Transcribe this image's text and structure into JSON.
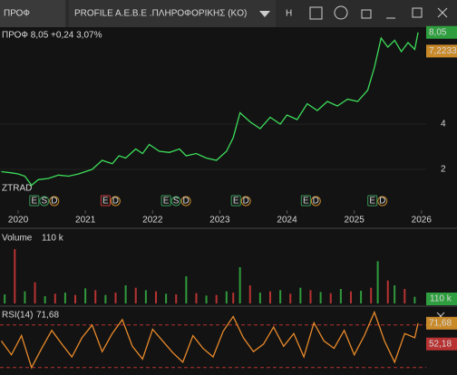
{
  "header": {
    "symbol": "ПРОФ",
    "instrument": "PROFILE A.E.B.E .ΠΛΗΡΟΦΟΡΙΚΗΣ (KO)",
    "button": "H"
  },
  "chart_data": [
    {
      "type": "line",
      "legend_text": "ПРОФ 8,05 +0,24 3,07%",
      "watermark": "ZTRAD",
      "color": "#3ddc5a",
      "x": [
        2019.75,
        2019.9,
        2020.0,
        2020.1,
        2020.2,
        2020.3,
        2020.45,
        2020.6,
        2020.75,
        2020.9,
        2021.0,
        2021.1,
        2021.25,
        2021.4,
        2021.5,
        2021.6,
        2021.75,
        2021.85,
        2021.95,
        2022.1,
        2022.25,
        2022.4,
        2022.5,
        2022.65,
        2022.8,
        2022.95,
        2023.1,
        2023.2,
        2023.3,
        2023.45,
        2023.6,
        2023.75,
        2023.9,
        2024.0,
        2024.15,
        2024.3,
        2024.45,
        2024.6,
        2024.75,
        2024.9,
        2025.05,
        2025.2,
        2025.3,
        2025.4,
        2025.5,
        2025.6,
        2025.7,
        2025.8,
        2025.9,
        2025.95
      ],
      "values": [
        1.9,
        1.85,
        1.8,
        1.7,
        1.3,
        1.55,
        1.6,
        1.75,
        1.7,
        1.8,
        1.9,
        2.0,
        2.4,
        2.25,
        2.6,
        2.5,
        2.9,
        2.7,
        3.1,
        2.8,
        2.75,
        2.9,
        2.6,
        2.7,
        2.5,
        2.4,
        2.8,
        3.4,
        4.5,
        4.1,
        3.8,
        4.3,
        4.0,
        4.4,
        4.2,
        4.9,
        4.6,
        5.0,
        4.8,
        5.1,
        5.0,
        5.5,
        6.5,
        7.8,
        7.4,
        7.7,
        7.2,
        7.6,
        7.3,
        8.05
      ],
      "xlim": [
        2019.73,
        2026.07
      ],
      "xticks": [
        2020,
        2021,
        2022,
        2023,
        2024,
        2025,
        2026
      ],
      "ylim": [
        0.2,
        8.28
      ],
      "yticks": [
        2,
        4
      ],
      "markers": [
        {
          "value": 8.05,
          "label": "8,05",
          "color": "#2e9e3e"
        },
        {
          "value": 7.2233,
          "label": "7,2233",
          "color": "#c98a2a"
        }
      ],
      "events": [
        {
          "x": 2020.24,
          "labels": [
            "E",
            "S",
            "D"
          ],
          "color": "#3a9a5a"
        },
        {
          "x": 2021.3,
          "labels": [
            "E",
            "D"
          ],
          "color": "#c83a3a"
        },
        {
          "x": 2022.2,
          "labels": [
            "E",
            "S",
            "D"
          ],
          "color": "#3a9a5a"
        },
        {
          "x": 2023.24,
          "labels": [
            "E",
            "D"
          ],
          "color": "#3a9a5a"
        },
        {
          "x": 2024.28,
          "labels": [
            "E",
            "D"
          ],
          "color": "#3a9a5a"
        },
        {
          "x": 2025.27,
          "labels": [
            "E",
            "D"
          ],
          "color": "#3a9a5a"
        }
      ]
    },
    {
      "type": "bar",
      "name": "Volume",
      "value_label": "110 k",
      "ylim": [
        0,
        1200
      ],
      "series": [
        {
          "color": "#2f9a3c",
          "x": [
            2019.8,
            2020.1,
            2020.4,
            2020.7,
            2021.0,
            2021.3,
            2021.6,
            2021.9,
            2022.2,
            2022.5,
            2022.8,
            2023.1,
            2023.3,
            2023.6,
            2023.9,
            2024.2,
            2024.5,
            2024.8,
            2025.1,
            2025.35,
            2025.6,
            2025.9
          ],
          "values": [
            150,
            200,
            120,
            180,
            250,
            140,
            300,
            220,
            160,
            450,
            130,
            200,
            600,
            180,
            220,
            260,
            190,
            240,
            210,
            700,
            300,
            110
          ]
        },
        {
          "color": "#b83232",
          "x": [
            2019.95,
            2020.25,
            2020.55,
            2020.85,
            2021.15,
            2021.45,
            2021.75,
            2022.05,
            2022.35,
            2022.65,
            2022.95,
            2023.2,
            2023.45,
            2023.75,
            2024.05,
            2024.35,
            2024.65,
            2024.95,
            2025.25,
            2025.5,
            2025.75
          ],
          "values": [
            900,
            350,
            160,
            140,
            220,
            180,
            260,
            200,
            150,
            170,
            140,
            180,
            300,
            200,
            160,
            220,
            170,
            200,
            260,
            380,
            240
          ]
        }
      ]
    },
    {
      "type": "line",
      "name": "RSI(14)",
      "value_label": "71,68",
      "color": "#e8892a",
      "x": [
        2019.75,
        2019.9,
        2020.05,
        2020.2,
        2020.35,
        2020.5,
        2020.65,
        2020.8,
        2020.95,
        2021.1,
        2021.25,
        2021.4,
        2021.55,
        2021.7,
        2021.85,
        2022.0,
        2022.15,
        2022.3,
        2022.45,
        2022.6,
        2022.75,
        2022.9,
        2023.05,
        2023.2,
        2023.35,
        2023.5,
        2023.65,
        2023.8,
        2023.95,
        2024.1,
        2024.25,
        2024.4,
        2024.55,
        2024.7,
        2024.85,
        2025.0,
        2025.15,
        2025.3,
        2025.45,
        2025.6,
        2025.75,
        2025.9,
        2025.95
      ],
      "values": [
        55,
        42,
        60,
        30,
        48,
        65,
        52,
        40,
        58,
        70,
        45,
        62,
        75,
        50,
        38,
        66,
        55,
        44,
        35,
        60,
        48,
        40,
        64,
        78,
        58,
        45,
        52,
        68,
        50,
        62,
        40,
        72,
        55,
        48,
        65,
        42,
        60,
        82,
        55,
        35,
        62,
        58,
        71.68
      ],
      "ylim": [
        23,
        86
      ],
      "levels": [
        70,
        30
      ],
      "markers": [
        {
          "value": 71.68,
          "label": "71,68",
          "color": "#c98a2a"
        },
        {
          "value": 52.18,
          "label": "52,18",
          "color": "#b83232"
        }
      ]
    }
  ]
}
